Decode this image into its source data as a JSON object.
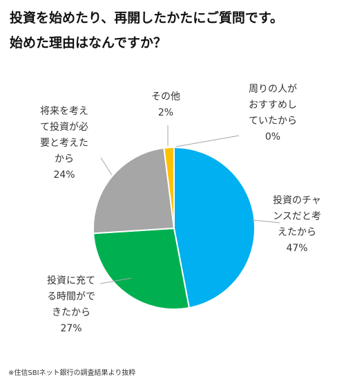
{
  "title": {
    "line1": "投資を始めたり、再開したかたにご質問です。",
    "line2": "始めた理由はなんですか？"
  },
  "chart_data": {
    "type": "pie",
    "series": [
      {
        "name": "投資のチャンスだと考えたから",
        "value": 47,
        "value_label": "47%",
        "label_lines": [
          "投資のチャ",
          "ンスだと考",
          "えたから"
        ],
        "color": "#00b0f0"
      },
      {
        "name": "投資に充てる時間ができたから",
        "value": 27,
        "value_label": "27%",
        "label_lines": [
          "投資に充て",
          "る時間がで",
          "きたから"
        ],
        "color": "#00b050"
      },
      {
        "name": "将来を考えて投資が必要と考えたから",
        "value": 24,
        "value_label": "24%",
        "label_lines": [
          "将来を考え",
          "て投資が必",
          "要と考えた",
          "から"
        ],
        "color": "#a6a6a6"
      },
      {
        "name": "その他",
        "value": 2,
        "value_label": "2%",
        "label_lines": [
          "その他"
        ],
        "color": "#ffc000"
      },
      {
        "name": "周りの人がおすすめしていたから",
        "value": 0,
        "value_label": "0%",
        "label_lines": [
          "周りの人が",
          "おすすめし",
          "ていたから"
        ],
        "color": "#4472c4"
      }
    ],
    "start_angle_deg": 0,
    "direction": "clockwise",
    "legend": "none"
  },
  "footnote": "※住信SBIネット銀行の調査結果より抜粋"
}
